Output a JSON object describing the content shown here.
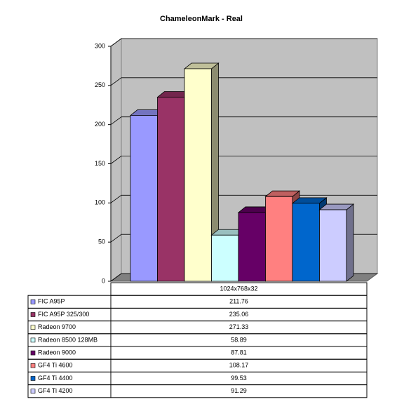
{
  "chart_data": {
    "type": "bar3d",
    "title": "ChameleonMark - Real",
    "categories": [
      "1024x768x32"
    ],
    "series": [
      {
        "name": "FIC A95P",
        "color": "#9999ff",
        "values": [
          211.76
        ]
      },
      {
        "name": "FIC A95P 325/300",
        "color": "#993366",
        "values": [
          235.06
        ]
      },
      {
        "name": "Radeon 9700",
        "color": "#ffffcc",
        "values": [
          271.33
        ]
      },
      {
        "name": "Radeon 8500 128MB",
        "color": "#ccffff",
        "values": [
          58.89
        ]
      },
      {
        "name": "Radeon 9000",
        "color": "#660066",
        "values": [
          87.81
        ]
      },
      {
        "name": "GF4 Ti 4600",
        "color": "#ff8080",
        "values": [
          108.17
        ]
      },
      {
        "name": "GF4 Ti 4400",
        "color": "#0066cc",
        "values": [
          99.53
        ]
      },
      {
        "name": "GF4 Ti 4200",
        "color": "#ccccff",
        "values": [
          91.29
        ]
      }
    ],
    "ylim": [
      0,
      300
    ],
    "yticks": [
      0,
      50,
      100,
      150,
      200,
      250,
      300
    ],
    "grid": true
  }
}
